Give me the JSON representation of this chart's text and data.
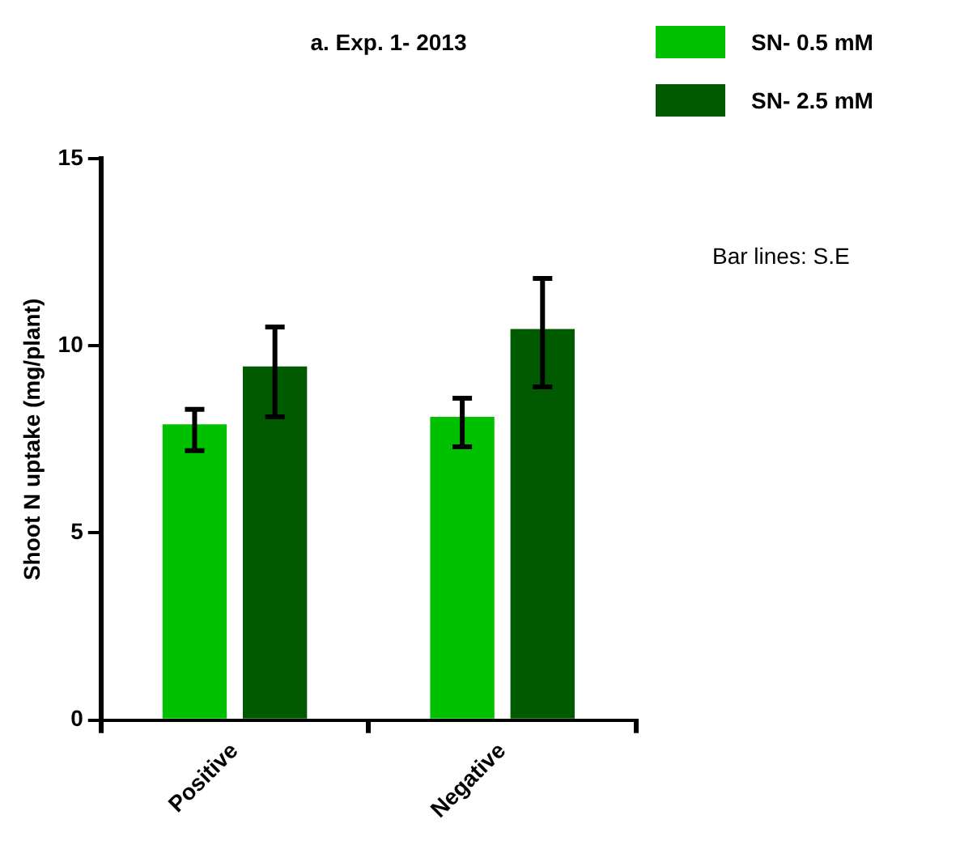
{
  "chart_data": {
    "type": "bar",
    "title": "a. Exp. 1- 2013",
    "ylabel": "Shoot N uptake (mg/plant)",
    "categories": [
      "Positive",
      "Negative"
    ],
    "series": [
      {
        "name": "SN- 0.5 mM",
        "color": "#00c000",
        "values": [
          7.9,
          8.1
        ],
        "errors": [
          [
            7.2,
            8.3
          ],
          [
            7.3,
            8.6
          ]
        ]
      },
      {
        "name": "SN- 2.5 mM",
        "color": "#005a00",
        "values": [
          9.45,
          10.45
        ],
        "errors": [
          [
            8.1,
            10.5
          ],
          [
            8.9,
            11.8
          ]
        ]
      }
    ],
    "ylim": [
      0,
      15
    ],
    "yticks": [
      0,
      5,
      10,
      15
    ],
    "grid": false,
    "legend": "top right",
    "annotations": [
      "Bar lines: S.E"
    ]
  }
}
